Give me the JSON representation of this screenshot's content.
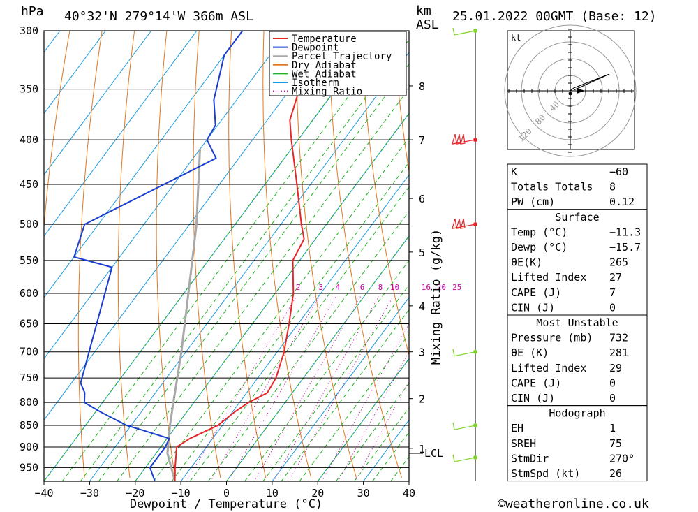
{
  "header": {
    "pressure_unit": "hPa",
    "location": "40°32'N  279°14'W  366m  ASL",
    "height_unit_top": "km",
    "height_unit_bottom": "ASL",
    "datetime": "25.01.2022  00GMT  (Base: 12)"
  },
  "footer": {
    "copyright": "©weatheronline.co.uk"
  },
  "chart_data": {
    "type": "line",
    "subtype": "skew-T log-P",
    "xlabel": "Dewpoint / Temperature (°C)",
    "ylabel_left": "hPa",
    "ylabel_right": "Mixing Ratio (g/kg)",
    "xlim": [
      -40,
      40
    ],
    "ylim_hpa": [
      300,
      985
    ],
    "x_ticks": [
      "−40",
      "−30",
      "−20",
      "−10",
      "0",
      "10",
      "20",
      "30",
      "40"
    ],
    "x_tick_values": [
      -40,
      -30,
      -20,
      -10,
      0,
      10,
      20,
      30,
      40
    ],
    "pressure_levels": [
      300,
      350,
      400,
      450,
      500,
      550,
      600,
      650,
      700,
      750,
      800,
      850,
      900,
      950
    ],
    "km_ticks": [
      {
        "label": "8",
        "p": 347
      },
      {
        "label": "7",
        "p": 400
      },
      {
        "label": "6",
        "p": 467
      },
      {
        "label": "5",
        "p": 538
      },
      {
        "label": "4",
        "p": 620
      },
      {
        "label": "3",
        "p": 700
      },
      {
        "label": "2",
        "p": 792
      },
      {
        "label": "1",
        "p": 903
      }
    ],
    "lcl_label": "LCL",
    "lcl_p": 915,
    "mixing_ratio_labels": [
      "2",
      "3",
      "4",
      "6",
      "8",
      "10",
      "16",
      "20",
      "25"
    ],
    "legend": [
      "Temperature",
      "Dewpoint",
      "Parcel Trajectory",
      "Dry Adiabat",
      "Wet Adiabat",
      "Isotherm",
      "Mixing Ratio"
    ],
    "colors": {
      "temperature": "#e8262a",
      "dewpoint": "#1a3fcf",
      "parcel": "#a8a8a8",
      "dry_adiabat": "#e07820",
      "wet_adiabat": "#21b321",
      "isotherm": "#1a9ae0",
      "mixing_ratio": "#cc00aa",
      "wind": "#7fd32a",
      "wind_strong": "#e8262a"
    },
    "series": [
      {
        "name": "Temperature",
        "points": [
          {
            "p": 985,
            "t": -11.3
          },
          {
            "p": 950,
            "t": -13.5
          },
          {
            "p": 900,
            "t": -16.5
          },
          {
            "p": 880,
            "t": -15.0
          },
          {
            "p": 850,
            "t": -11.0
          },
          {
            "p": 820,
            "t": -9.5
          },
          {
            "p": 800,
            "t": -8.0
          },
          {
            "p": 780,
            "t": -5.5
          },
          {
            "p": 750,
            "t": -6.0
          },
          {
            "p": 700,
            "t": -8.5
          },
          {
            "p": 650,
            "t": -12.0
          },
          {
            "p": 600,
            "t": -16.0
          },
          {
            "p": 550,
            "t": -21.5
          },
          {
            "p": 520,
            "t": -22.5
          },
          {
            "p": 500,
            "t": -25.5
          },
          {
            "p": 450,
            "t": -33.0
          },
          {
            "p": 400,
            "t": -41.5
          },
          {
            "p": 380,
            "t": -45.0
          },
          {
            "p": 350,
            "t": -48.0
          },
          {
            "p": 320,
            "t": -53.0
          },
          {
            "p": 308,
            "t": -55.5
          },
          {
            "p": 300,
            "t": -55.5
          }
        ]
      },
      {
        "name": "Dewpoint",
        "points": [
          {
            "p": 985,
            "t": -15.7
          },
          {
            "p": 950,
            "t": -19.0
          },
          {
            "p": 900,
            "t": -19.0
          },
          {
            "p": 880,
            "t": -19.5
          },
          {
            "p": 860,
            "t": -27.0
          },
          {
            "p": 850,
            "t": -31.0
          },
          {
            "p": 820,
            "t": -39.0
          },
          {
            "p": 800,
            "t": -44.0
          },
          {
            "p": 780,
            "t": -45.5
          },
          {
            "p": 760,
            "t": -48.0
          },
          {
            "p": 560,
            "t": -60.0
          },
          {
            "p": 545,
            "t": -70.0
          },
          {
            "p": 500,
            "t": -73.0
          },
          {
            "p": 420,
            "t": -55.0
          },
          {
            "p": 400,
            "t": -60.0
          },
          {
            "p": 385,
            "t": -60.5
          },
          {
            "p": 360,
            "t": -65.0
          },
          {
            "p": 320,
            "t": -70.0
          },
          {
            "p": 300,
            "t": -70.0
          }
        ]
      },
      {
        "name": "Parcel Trajectory",
        "points": [
          {
            "p": 985,
            "t": -11.3
          },
          {
            "p": 915,
            "t": -17.5
          },
          {
            "p": 850,
            "t": -21.5
          },
          {
            "p": 800,
            "t": -24.5
          },
          {
            "p": 700,
            "t": -31.0
          },
          {
            "p": 600,
            "t": -39.0
          },
          {
            "p": 500,
            "t": -48.5
          },
          {
            "p": 410,
            "t": -60.0
          }
        ]
      }
    ],
    "winds": [
      {
        "p": 300,
        "kind": "light"
      },
      {
        "p": 400,
        "kind": "strong"
      },
      {
        "p": 500,
        "kind": "strong"
      },
      {
        "p": 700,
        "kind": "light"
      },
      {
        "p": 850,
        "kind": "light"
      },
      {
        "p": 925,
        "kind": "light"
      }
    ],
    "hodograph": {
      "unit": "kt",
      "ring_labels": [
        "40",
        "80",
        "120"
      ],
      "ring_values": [
        40,
        80,
        120
      ]
    }
  },
  "indices": {
    "general": [
      {
        "label": "K",
        "value": "−60"
      },
      {
        "label": "Totals Totals",
        "value": "8"
      },
      {
        "label": "PW (cm)",
        "value": "0.12"
      }
    ],
    "surface_title": "Surface",
    "surface": [
      {
        "label": "Temp (°C)",
        "value": "−11.3"
      },
      {
        "label": "Dewp (°C)",
        "value": "−15.7"
      },
      {
        "label": "θE(K)",
        "value": "265"
      },
      {
        "label": "Lifted Index",
        "value": "27"
      },
      {
        "label": "CAPE (J)",
        "value": "7"
      },
      {
        "label": "CIN (J)",
        "value": "0"
      }
    ],
    "unstable_title": "Most Unstable",
    "unstable": [
      {
        "label": "Pressure (mb)",
        "value": "732"
      },
      {
        "label": "θE (K)",
        "value": "281"
      },
      {
        "label": "Lifted Index",
        "value": "29"
      },
      {
        "label": "CAPE (J)",
        "value": "0"
      },
      {
        "label": "CIN (J)",
        "value": "0"
      }
    ],
    "hodo_title": "Hodograph",
    "hodo": [
      {
        "label": "EH",
        "value": "1"
      },
      {
        "label": "SREH",
        "value": "75"
      },
      {
        "label": "StmDir",
        "value": "270°"
      },
      {
        "label": "StmSpd (kt)",
        "value": "26"
      }
    ]
  }
}
